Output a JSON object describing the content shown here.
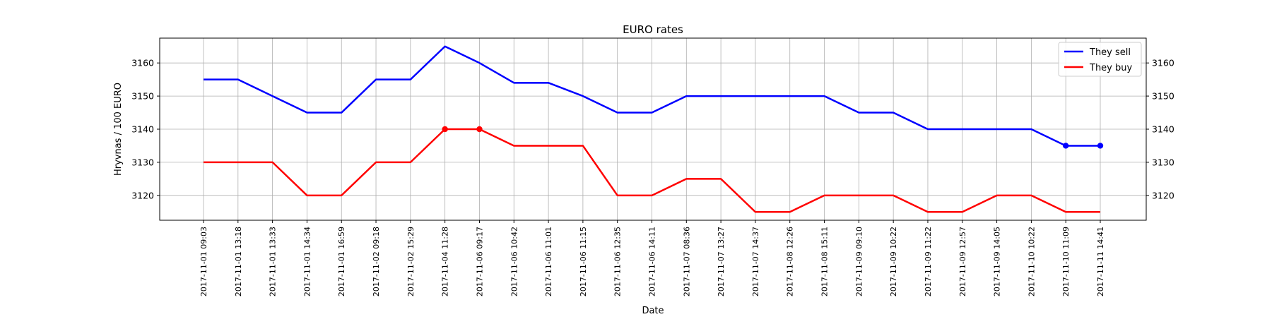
{
  "chart_data": {
    "type": "line",
    "title": "EURO rates",
    "xlabel": "Date",
    "ylabel": "Hryvnas / 100 EURO",
    "ylim": [
      3112.5,
      3167.5
    ],
    "yticks": [
      3120,
      3130,
      3140,
      3150,
      3160
    ],
    "grid": true,
    "legend_position": "top-right",
    "categories": [
      "2017-11-01 09:03",
      "2017-11-01 13:18",
      "2017-11-01 13:33",
      "2017-11-01 14:34",
      "2017-11-01 16:59",
      "2017-11-02 09:18",
      "2017-11-02 15:29",
      "2017-11-04 11:28",
      "2017-11-06 09:17",
      "2017-11-06 10:42",
      "2017-11-06 11:01",
      "2017-11-06 11:15",
      "2017-11-06 12:35",
      "2017-11-06 14:11",
      "2017-11-07 08:36",
      "2017-11-07 13:27",
      "2017-11-07 14:37",
      "2017-11-08 12:26",
      "2017-11-08 15:11",
      "2017-11-09 09:10",
      "2017-11-09 10:22",
      "2017-11-09 11:22",
      "2017-11-09 12:57",
      "2017-11-09 14:05",
      "2017-11-10 10:22",
      "2017-11-10 11:09",
      "2017-11-11 14:41"
    ],
    "series": [
      {
        "name": "They sell",
        "color": "#0000ff",
        "values": [
          3155,
          3155,
          3150,
          3145,
          3145,
          3155,
          3155,
          3165,
          3160,
          3154,
          3154,
          3150,
          3145,
          3145,
          3150,
          3150,
          3150,
          3150,
          3150,
          3145,
          3145,
          3140,
          3140,
          3140,
          3140,
          3135,
          3135
        ],
        "markers_at": [
          25,
          26
        ]
      },
      {
        "name": "They buy",
        "color": "#ff0000",
        "values": [
          3130,
          3130,
          3130,
          3120,
          3120,
          3130,
          3130,
          3140,
          3140,
          3135,
          3135,
          3135,
          3120,
          3120,
          3125,
          3125,
          3115,
          3115,
          3120,
          3120,
          3120,
          3115,
          3115,
          3120,
          3120,
          3115,
          3115
        ],
        "markers_at": [
          7,
          8
        ]
      }
    ]
  }
}
